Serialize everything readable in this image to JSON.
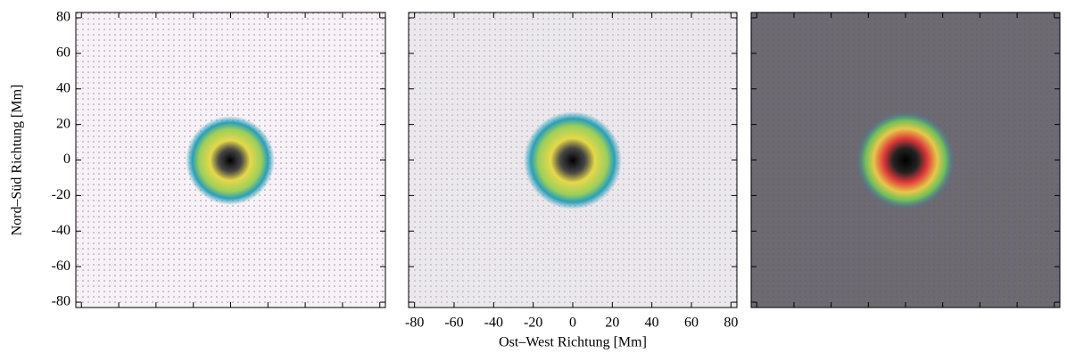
{
  "chart_data": [
    {
      "type": "image",
      "xlim": [
        -83,
        83
      ],
      "ylim": [
        -83,
        83
      ],
      "xticks": [
        -80,
        -60,
        -40,
        -20,
        0,
        20,
        40,
        60,
        80
      ],
      "yticks": [
        -80,
        -60,
        -40,
        -20,
        0,
        20,
        40,
        60,
        80
      ],
      "ylabel": "Nord–Süd Richtung [Mm]",
      "show_xticklabels": false,
      "show_yticklabels": true
    },
    {
      "type": "image",
      "xlim": [
        -83,
        83
      ],
      "ylim": [
        -83,
        83
      ],
      "xticks": [
        -80,
        -60,
        -40,
        -20,
        0,
        20,
        40,
        60,
        80
      ],
      "yticks": [
        -80,
        -60,
        -40,
        -20,
        0,
        20,
        40,
        60,
        80
      ],
      "xlabel": "Ost–West Richtung [Mm]",
      "show_xticklabels": true,
      "show_yticklabels": false
    },
    {
      "type": "image",
      "xlim": [
        -83,
        83
      ],
      "ylim": [
        -83,
        83
      ],
      "xticks": [
        -80,
        -60,
        -40,
        -20,
        0,
        20,
        40,
        60,
        80
      ],
      "yticks": [
        -80,
        -60,
        -40,
        -20,
        0,
        20,
        40,
        60,
        80
      ],
      "show_xticklabels": false,
      "show_yticklabels": false
    }
  ]
}
